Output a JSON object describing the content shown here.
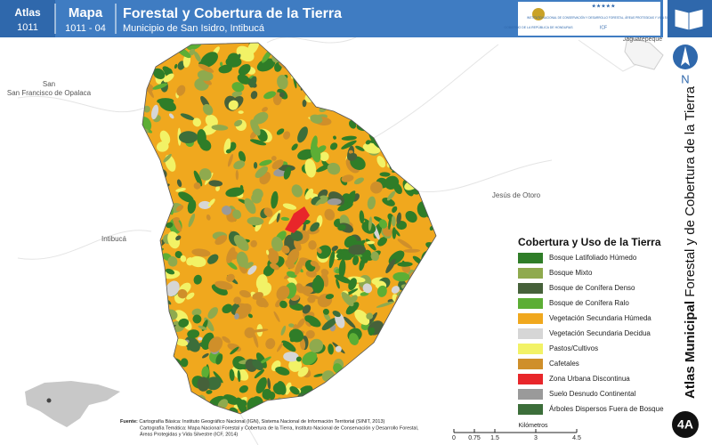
{
  "header": {
    "atlas_label": "Atlas",
    "atlas_code": "1011",
    "map_label": "Mapa",
    "map_code": "1011 - 04",
    "title": "Forestal y Cobertura de la Tierra",
    "subtitle": "Municipio de San Isidro, Intibucá",
    "government": "GOBIERNO DE LA REPÚBLICA DE HONDURAS",
    "institute": "INSTITUTO NACIONAL DE CONSERVACIÓN Y DESARROLLO FORESTAL, ÁREAS PROTEGIDAS Y VIDA SILVESTRE",
    "institute_short": "ICF"
  },
  "places": [
    "San Francisco de Opalaca",
    "Jesús de Otoro",
    "Intibucá",
    "Jaguatepeque"
  ],
  "north": "N",
  "side_title": {
    "bold": "Atlas Municipal",
    "rest": "Forestal y de Cobertura de la Tierra"
  },
  "legend": {
    "title": "Cobertura y Uso de la Tierra",
    "items": [
      {
        "label": "Bosque Latifoliado Húmedo",
        "color": "#2f7d28"
      },
      {
        "label": "Bosque Mixto",
        "color": "#8faa4e"
      },
      {
        "label": "Bosque de Conífera Denso",
        "color": "#46613a"
      },
      {
        "label": "Bosque de Conífera Ralo",
        "color": "#5cae35"
      },
      {
        "label": "Vegetación Secundaria Húmeda",
        "color": "#f0a81e"
      },
      {
        "label": "Vegetación Secundaria Decidua",
        "color": "#d6d6d6"
      },
      {
        "label": "Pastos/Cultivos",
        "color": "#f2f266"
      },
      {
        "label": "Cafetales",
        "color": "#cf8f2a"
      },
      {
        "label": "Zona Urbana Discontinua",
        "color": "#e8262a"
      },
      {
        "label": "Suelo Desnudo Continental",
        "color": "#9a9a9a"
      },
      {
        "label": "Árboles Dispersos Fuera de Bosque",
        "color": "#3c6e3a"
      }
    ]
  },
  "scale": {
    "ticks": [
      0,
      0.75,
      1.5,
      3,
      4.5
    ],
    "unit": "Kilómetros"
  },
  "sources": {
    "label": "Fuente:",
    "lines": [
      "Cartografía Básica: Instituto Geográfico Nacional (IGN), Sistema Nacional de Información Territorial (SINIT, 2013)",
      "Cartografía Temática: Mapa Nacional Forestal y Cobertura de la Tierra, Instituto Nacional de Conservación y Desarrollo Forestal,",
      "Áreas Protegidas y Vida Silvestre (ICF, 2014)"
    ]
  },
  "badge": "4A"
}
